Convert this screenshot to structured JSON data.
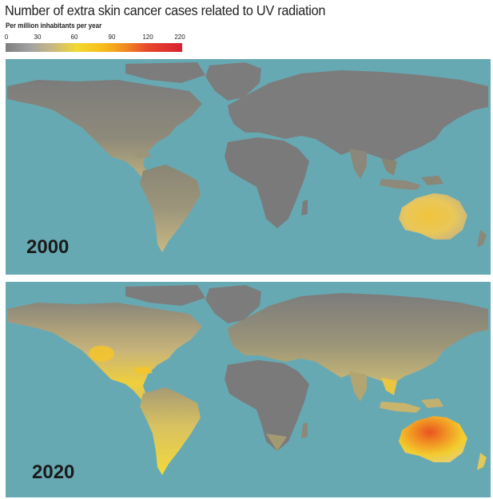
{
  "title": "Number of extra skin cancer cases related to UV radiation",
  "subtitle": "Per million inhabitants per year",
  "legend": {
    "ticks": [
      "0",
      "30",
      "60",
      "90",
      "120",
      "220"
    ],
    "colors": [
      "#7f7f7f",
      "#a3a3a3",
      "#c9b97e",
      "#f2d832",
      "#f8c21e",
      "#f4a41c",
      "#ef7f23",
      "#e84a2c",
      "#d82030"
    ]
  },
  "ocean_color": "#67a9b3",
  "land_color": "#7c7c7c",
  "maps": [
    {
      "year": "2000"
    },
    {
      "year": "2020"
    }
  ]
}
